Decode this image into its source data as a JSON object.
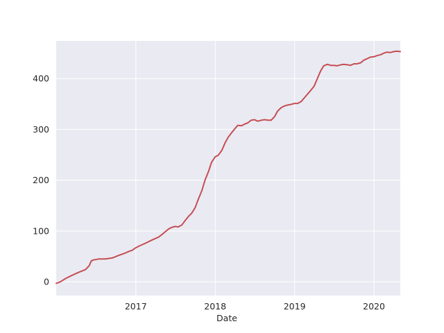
{
  "chart_data": {
    "type": "line",
    "title": "",
    "xlabel": "Date",
    "ylabel": "",
    "x_axis_type": "date",
    "xlim": [
      "2016-01-01",
      "2020-05-01"
    ],
    "ylim": [
      -27,
      474
    ],
    "grid": true,
    "legend": "none",
    "x_ticks": [
      {
        "value": "2017-01-01",
        "label": "2017"
      },
      {
        "value": "2018-01-01",
        "label": "2018"
      },
      {
        "value": "2019-01-01",
        "label": "2019"
      },
      {
        "value": "2020-01-01",
        "label": "2020"
      }
    ],
    "y_ticks": [
      {
        "value": 0,
        "label": "0"
      },
      {
        "value": 100,
        "label": "100"
      },
      {
        "value": 200,
        "label": "200"
      },
      {
        "value": 300,
        "label": "300"
      },
      {
        "value": 400,
        "label": "400"
      }
    ],
    "colors": {
      "series": "#c44e52",
      "plot_background": "#eaeaf2",
      "grid": "#ffffff"
    },
    "series": [
      {
        "x": [
          "2016-01-01",
          "2016-01-20",
          "2016-02-15",
          "2016-03-15",
          "2016-04-15",
          "2016-05-15",
          "2016-06-01",
          "2016-06-10",
          "2016-06-20",
          "2016-07-15",
          "2016-08-15",
          "2016-09-15",
          "2016-10-15",
          "2016-11-15",
          "2016-12-01",
          "2016-12-15",
          "2017-01-01",
          "2017-01-15",
          "2017-02-15",
          "2017-03-15",
          "2017-04-15",
          "2017-05-01",
          "2017-05-15",
          "2017-06-01",
          "2017-06-15",
          "2017-07-01",
          "2017-07-15",
          "2017-08-01",
          "2017-08-15",
          "2017-09-01",
          "2017-09-15",
          "2017-10-01",
          "2017-10-15",
          "2017-11-01",
          "2017-11-15",
          "2017-12-01",
          "2017-12-15",
          "2018-01-01",
          "2018-01-15",
          "2018-02-01",
          "2018-02-15",
          "2018-03-01",
          "2018-03-15",
          "2018-04-01",
          "2018-04-15",
          "2018-05-01",
          "2018-05-15",
          "2018-06-01",
          "2018-06-15",
          "2018-07-01",
          "2018-07-15",
          "2018-08-01",
          "2018-08-15",
          "2018-09-01",
          "2018-09-15",
          "2018-10-01",
          "2018-10-15",
          "2018-11-01",
          "2018-11-15",
          "2018-12-01",
          "2018-12-15",
          "2019-01-01",
          "2019-01-15",
          "2019-02-01",
          "2019-02-15",
          "2019-03-01",
          "2019-03-15",
          "2019-04-01",
          "2019-04-15",
          "2019-05-01",
          "2019-05-15",
          "2019-06-01",
          "2019-06-15",
          "2019-07-01",
          "2019-07-15",
          "2019-08-01",
          "2019-08-15",
          "2019-09-01",
          "2019-09-15",
          "2019-10-01",
          "2019-10-15",
          "2019-11-01",
          "2019-11-15",
          "2019-12-01",
          "2019-12-15",
          "2020-01-01",
          "2020-01-15",
          "2020-02-01",
          "2020-02-15",
          "2020-03-01",
          "2020-03-15",
          "2020-04-01",
          "2020-04-15",
          "2020-05-01"
        ],
        "values": [
          -3,
          0,
          7,
          13,
          19,
          24,
          32,
          41,
          43,
          45,
          45,
          47,
          52,
          57,
          60,
          62,
          67,
          70,
          76,
          82,
          88,
          93,
          98,
          104,
          107,
          109,
          108,
          112,
          120,
          129,
          135,
          146,
          162,
          180,
          200,
          217,
          235,
          246,
          249,
          259,
          273,
          284,
          292,
          301,
          308,
          307,
          310,
          313,
          318,
          319,
          316,
          318,
          319,
          318,
          318,
          325,
          336,
          343,
          346,
          348,
          349,
          351,
          351,
          355,
          362,
          369,
          376,
          385,
          399,
          415,
          425,
          428,
          426,
          426,
          425,
          427,
          428,
          427,
          426,
          429,
          429,
          431,
          436,
          439,
          442,
          443,
          445,
          447,
          450,
          452,
          451,
          453,
          454,
          453
        ]
      }
    ]
  }
}
